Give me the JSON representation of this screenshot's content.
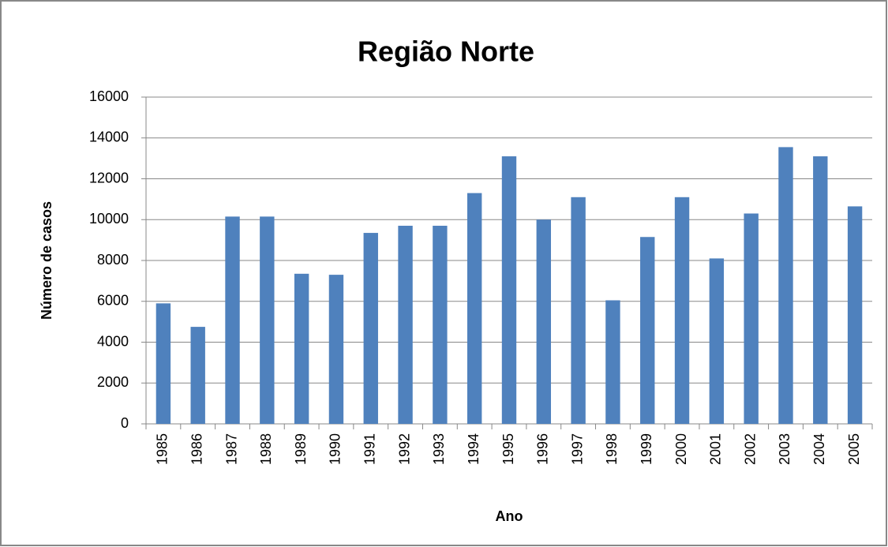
{
  "chart_data": {
    "type": "bar",
    "title": "Região Norte",
    "x_label": "Ano",
    "y_label": "Número de casos",
    "categories": [
      "1985",
      "1986",
      "1987",
      "1988",
      "1989",
      "1990",
      "1991",
      "1992",
      "1993",
      "1994",
      "1995",
      "1996",
      "1997",
      "1998",
      "1999",
      "2000",
      "2001",
      "2002",
      "2003",
      "2004",
      "2005"
    ],
    "values": [
      5900,
      4750,
      10150,
      10150,
      7350,
      7300,
      9350,
      9700,
      9700,
      11300,
      13100,
      10000,
      11100,
      6050,
      9150,
      11100,
      8100,
      10300,
      13550,
      13100,
      10650
    ],
    "color": "#4f81bd",
    "ylim": [
      0,
      16000
    ],
    "yticks": [
      0,
      2000,
      4000,
      6000,
      8000,
      10000,
      12000,
      14000,
      16000
    ],
    "grid": true
  }
}
